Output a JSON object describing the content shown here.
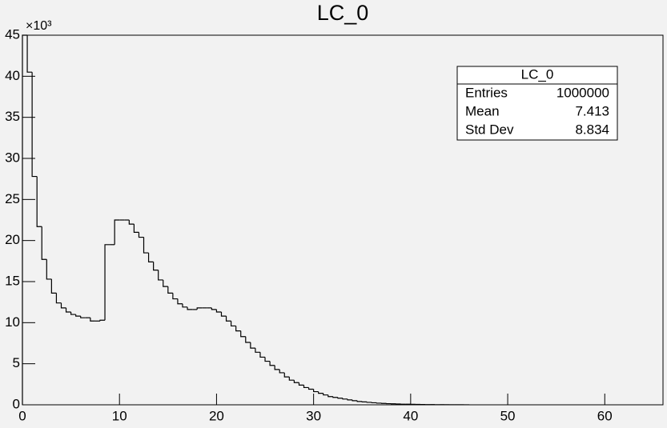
{
  "chart_data": {
    "type": "histogram",
    "title": "LC_0",
    "y_multiplier": "×10³",
    "color": "#000000",
    "bins": [
      0,
      0.5,
      1,
      1.5,
      2,
      2.5,
      3,
      3.5,
      4,
      4.5,
      5,
      5.5,
      6,
      6.5,
      7,
      7.5,
      8,
      8.5,
      9,
      9.5,
      10,
      10.5,
      11,
      11.5,
      12,
      12.5,
      13,
      13.5,
      14,
      14.5,
      15,
      15.5,
      16,
      16.5,
      17,
      17.5,
      18,
      18.5,
      19,
      19.5,
      20,
      20.5,
      21,
      21.5,
      22,
      22.5,
      23,
      23.5,
      24,
      24.5,
      25,
      25.5,
      26,
      26.5,
      27,
      27.5,
      28,
      28.5,
      29,
      29.5,
      30,
      30.5,
      31,
      31.5,
      32,
      32.5,
      33,
      33.5,
      34,
      34.5,
      35,
      35.5,
      36,
      36.5,
      37,
      37.5,
      38,
      38.5,
      39,
      39.5,
      40,
      40.5,
      41,
      41.5,
      42,
      42.5,
      43,
      43.5,
      44,
      44.5,
      45,
      45.5,
      46
    ],
    "values": [
      45,
      40.5,
      27.8,
      21.7,
      17.7,
      15.3,
      13.6,
      12.4,
      11.8,
      11.3,
      11.0,
      10.8,
      10.6,
      10.6,
      10.2,
      10.2,
      10.3,
      19.5,
      19.5,
      22.5,
      22.5,
      22.5,
      22.0,
      21.0,
      20.4,
      18.5,
      17.4,
      16.4,
      15.2,
      14.4,
      13.6,
      12.9,
      12.3,
      11.9,
      11.6,
      11.6,
      11.8,
      11.8,
      11.8,
      11.6,
      11.3,
      10.8,
      10.2,
      9.6,
      9.0,
      8.3,
      7.6,
      6.9,
      6.4,
      5.8,
      5.3,
      4.8,
      4.3,
      3.9,
      3.4,
      3.0,
      2.7,
      2.4,
      2.1,
      1.9,
      1.6,
      1.4,
      1.2,
      1.0,
      0.9,
      0.8,
      0.7,
      0.6,
      0.5,
      0.4,
      0.35,
      0.3,
      0.25,
      0.2,
      0.17,
      0.14,
      0.12,
      0.1,
      0.08,
      0.07,
      0.06,
      0.05,
      0.04,
      0.03,
      0.03,
      0.02,
      0.02,
      0.01,
      0.01,
      0.01,
      0.01,
      0.005
    ],
    "xlim": [
      0,
      66
    ],
    "xticks": [
      0,
      10,
      20,
      30,
      40,
      50,
      60
    ],
    "ylim": [
      0,
      45
    ],
    "yticks": [
      0,
      5,
      10,
      15,
      20,
      25,
      30,
      35,
      40,
      45
    ],
    "stats": {
      "title": "LC_0",
      "rows": [
        [
          "Entries",
          "1000000"
        ],
        [
          "Mean",
          "7.413"
        ],
        [
          "Std Dev",
          "8.834"
        ]
      ]
    }
  }
}
